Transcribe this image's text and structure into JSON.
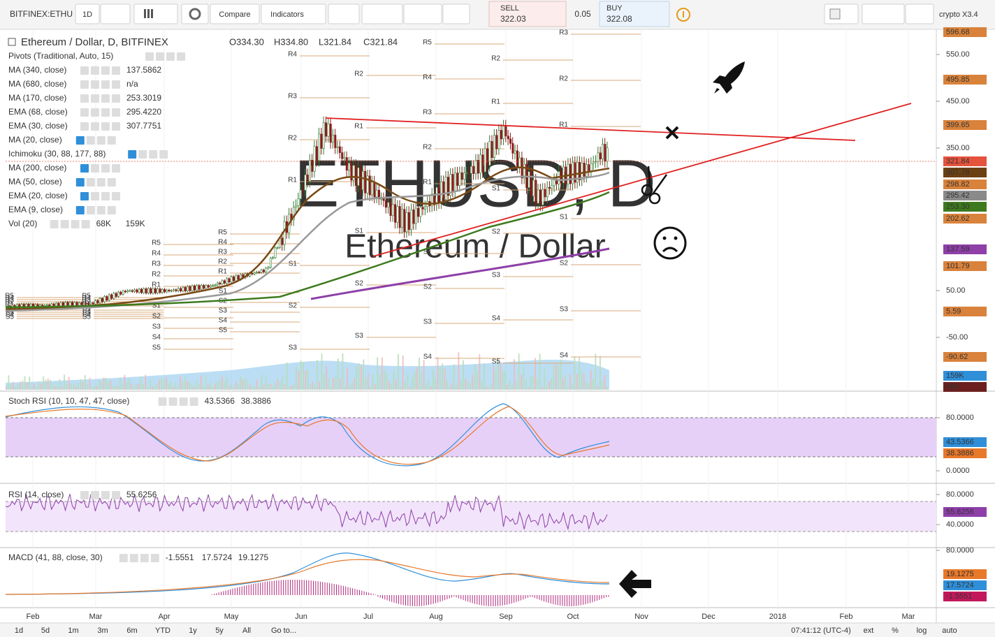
{
  "toolbar": {
    "symbol": "BITFINEX:ETHU",
    "interval": "1D",
    "compare": "Compare",
    "indicators": "Indicators",
    "sell_label": "SELL",
    "sell_price": "322.03",
    "spread": "0.05",
    "buy_label": "BUY",
    "buy_price": "322.08",
    "layout": "crypto X3.4"
  },
  "legend": {
    "title": "Ethereum / Dollar, D, BITFINEX",
    "ohlc": [
      "O334.30",
      "H334.80",
      "L321.84",
      "C321.84"
    ]
  },
  "watermark": {
    "symbol": "ETHUSD, D",
    "name": "Ethereum / Dollar"
  },
  "indicators": [
    {
      "name": "Pivots (Traditional, Auto, 15)",
      "values": [],
      "faded": false
    },
    {
      "name": "MA (340, close)",
      "values": [
        {
          "text": "137.5862",
          "color": "#8e3fa8"
        }
      ],
      "faded": false
    },
    {
      "name": "MA (680, close)",
      "values": [
        {
          "text": "n/a",
          "color": "#333333"
        }
      ],
      "faded": false
    },
    {
      "name": "MA (170, close)",
      "values": [
        {
          "text": "253.3019",
          "color": "#3d7a1e"
        }
      ],
      "faded": false
    },
    {
      "name": "EMA (68, close)",
      "values": [
        {
          "text": "295.4220",
          "color": "#777777"
        }
      ],
      "faded": false
    },
    {
      "name": "EMA (30, close)",
      "values": [
        {
          "text": "307.7751",
          "color": "#7a4a14"
        }
      ],
      "faded": false
    },
    {
      "name": "MA (20, close)",
      "values": [],
      "faded": true
    },
    {
      "name": "Ichimoku (30, 88, 177, 88)",
      "values": [],
      "faded": true
    },
    {
      "name": "MA (200, close)",
      "values": [],
      "faded": true
    },
    {
      "name": "MA (50, close)",
      "values": [],
      "faded": true
    },
    {
      "name": "EMA (20, close)",
      "values": [],
      "faded": true
    },
    {
      "name": "EMA (9, close)",
      "values": [],
      "faded": true
    },
    {
      "name": "Vol (20)",
      "values": [
        {
          "text": "68K",
          "color": "#7a1f1f"
        },
        {
          "text": "159K",
          "color": "#2f7fc1"
        }
      ],
      "faded": false
    }
  ],
  "pivot_levels": [
    "R5",
    "R4",
    "R3",
    "R2",
    "R1",
    "S1",
    "S2",
    "S3",
    "S4",
    "S5"
  ],
  "price_axis": [
    {
      "label": "596.68",
      "color": "#d9823b"
    },
    {
      "label": "550.00",
      "color": null
    },
    {
      "label": "495.85",
      "color": "#d9823b"
    },
    {
      "label": "450.00",
      "color": null
    },
    {
      "label": "399.65",
      "color": "#d9823b"
    },
    {
      "label": "350.00",
      "color": null
    },
    {
      "label": "321.84",
      "color": "#e5533d"
    },
    {
      "label": "307.78",
      "color": "#6b4012"
    },
    {
      "label": "298.82",
      "color": "#d9823b"
    },
    {
      "label": "295.42",
      "color": "#8a8a8a"
    },
    {
      "label": "253.30",
      "color": "#3d7a1e"
    },
    {
      "label": "202.62",
      "color": "#d9823b"
    },
    {
      "label": "137.59",
      "color": "#8e3fa8"
    },
    {
      "label": "101.79",
      "color": "#d9823b"
    },
    {
      "label": "50.00",
      "color": null
    },
    {
      "label": "5.59",
      "color": "#d9823b"
    },
    {
      "label": "-50.00",
      "color": null
    },
    {
      "label": "-90.62",
      "color": "#d9823b"
    },
    {
      "label": "159K",
      "color": "#2f8fd9"
    },
    {
      "label": "68K",
      "color": "#6b1f1f"
    }
  ],
  "panels": [
    {
      "name": "Stoch RSI (10, 10, 47, 47, close)",
      "values": [
        {
          "text": "43.5366",
          "color": "#2f8fd9"
        },
        {
          "text": "38.3886",
          "color": "#e8782a"
        }
      ],
      "axis": [
        {
          "label": "80.0000",
          "color": null
        },
        {
          "label": "43.5366",
          "color": "#2f8fd9"
        },
        {
          "label": "38.3886",
          "color": "#e8782a"
        },
        {
          "label": "0.0000",
          "color": null
        }
      ]
    },
    {
      "name": "RSI (14, close)",
      "values": [
        {
          "text": "55.6256",
          "color": "#8e3fa8"
        }
      ],
      "axis": [
        {
          "label": "80.0000",
          "color": null
        },
        {
          "label": "55.6256",
          "color": "#8e3fa8"
        },
        {
          "label": "40.0000",
          "color": null
        }
      ]
    },
    {
      "name": "MACD (41, 88, close, 30)",
      "values": [
        {
          "text": "-1.5551",
          "color": "#c2185b"
        },
        {
          "text": "17.5724",
          "color": "#2f8fd9"
        },
        {
          "text": "19.1275",
          "color": "#e8782a"
        }
      ],
      "axis": [
        {
          "label": "80.0000",
          "color": null
        },
        {
          "label": "19.1275",
          "color": "#e8782a"
        },
        {
          "label": "17.5724",
          "color": "#2f8fd9"
        },
        {
          "label": "-1.5551",
          "color": "#c2185b"
        }
      ]
    }
  ],
  "time_axis": [
    "Feb",
    "Mar",
    "Apr",
    "May",
    "Jun",
    "Jul",
    "Aug",
    "Sep",
    "Oct",
    "Nov",
    "Dec",
    "2018",
    "Feb",
    "Mar"
  ],
  "bottom_bar": {
    "ranges": [
      "1d",
      "5d",
      "1m",
      "3m",
      "6m",
      "YTD",
      "1y",
      "5y",
      "All",
      "Go to..."
    ],
    "clock": "07:41:12 (UTC-4)",
    "options": [
      "ext",
      "%",
      "log",
      "auto"
    ]
  }
}
